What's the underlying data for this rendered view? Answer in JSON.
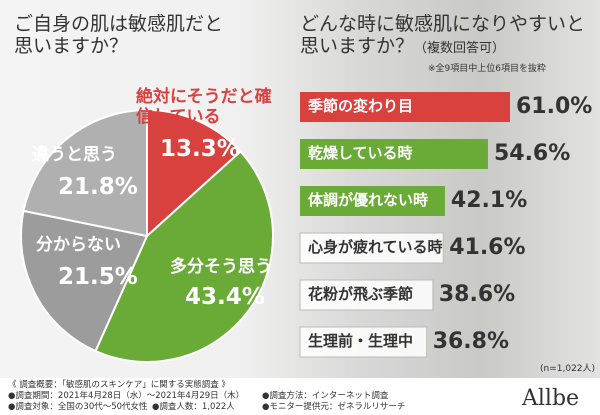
{
  "chart_data": [
    {
      "type": "pie",
      "title": "ご自身の肌は敏感肌だと思いますか？",
      "categories": [
        "絶対にそうだと確信している",
        "多分そう思う",
        "分からない",
        "違うと思う"
      ],
      "values": [
        13.3,
        43.4,
        21.5,
        21.8
      ],
      "value_labels": [
        "13.3%",
        "43.4%",
        "21.5%",
        "21.8%"
      ],
      "colors": [
        "#d9413f",
        "#6aaa36",
        "#9c9c9c",
        "#b0b0b0"
      ]
    },
    {
      "type": "hbar",
      "title": "どんな時に敏感肌になりやすいと思いますか？",
      "title_note": "（複数回答可）",
      "subtitle": "※全9項目中上位6項目を抜粋",
      "categories": [
        "季節の変わり目",
        "乾燥している時",
        "体調が優れない時",
        "心身が疲れている時",
        "花粉が飛ぶ季節",
        "生理前・生理中"
      ],
      "values": [
        61.0,
        54.6,
        42.1,
        41.6,
        38.6,
        36.8
      ],
      "value_labels": [
        "61.0%",
        "54.6%",
        "42.1%",
        "41.6%",
        "38.6%",
        "36.8%"
      ],
      "colors": [
        "#d9413f",
        "#6aaa36",
        "#6aaa36",
        "#ffffff",
        "#ffffff",
        "#ffffff"
      ],
      "sample_note": "(n=1,022人)"
    }
  ],
  "footer": {
    "heading": "《 調査概要：「敏感肌のスキンケア」に関する実態調査 》",
    "items": [
      "●調査期間：2021年4月28日（水）～2021年4月29日（木）",
      "●調査方法：インターネット調査",
      "●調査対象：全国の30代～50代女性",
      "●調査人数：1,022人",
      "●モニター提供元：ゼネラルリサーチ"
    ]
  },
  "logo": "Allbe"
}
